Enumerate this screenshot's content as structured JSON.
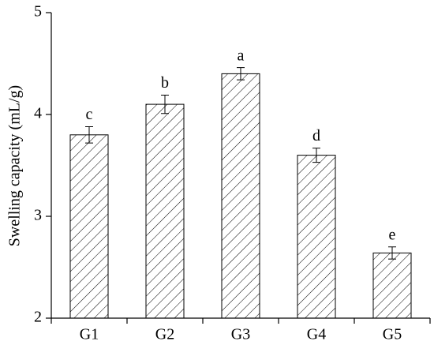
{
  "chart_data": {
    "type": "bar",
    "y_label": "Swelling capacity (mL/g)",
    "categories": [
      "G1",
      "G2",
      "G3",
      "G4",
      "G5"
    ],
    "values": [
      3.8,
      4.1,
      4.4,
      3.6,
      2.64
    ],
    "errors": [
      0.08,
      0.09,
      0.06,
      0.07,
      0.06
    ],
    "annotations": [
      "c",
      "b",
      "a",
      "d",
      "e"
    ],
    "color": "#000000",
    "hatch": true,
    "ylim": [
      2,
      5
    ],
    "yticks": [
      2,
      3,
      4,
      5
    ]
  }
}
